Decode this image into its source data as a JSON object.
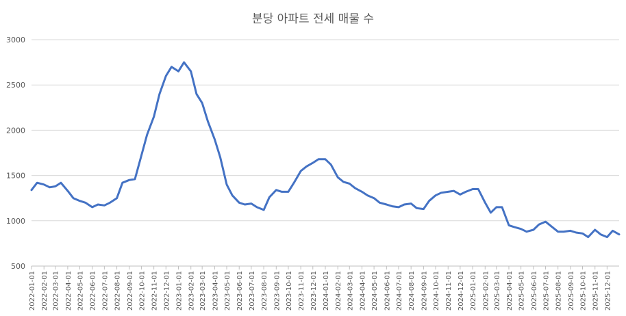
{
  "chart_data": {
    "type": "line",
    "title": "분당 아파트 전세 매물 수",
    "xlabel": "",
    "ylabel": "",
    "ylim": [
      500,
      3000
    ],
    "yticks": [
      500,
      1000,
      1500,
      2000,
      2500,
      3000
    ],
    "xlim": [
      "2022-01-01",
      "2025-12-31"
    ],
    "grid": "horizontal",
    "legend": "none",
    "line_color": "#4472c4",
    "x_tick_labels": [
      "2022-01-01",
      "2022-02-01",
      "2022-03-01",
      "2022-04-01",
      "2022-05-01",
      "2022-06-01",
      "2022-07-01",
      "2022-08-01",
      "2022-09-01",
      "2022-10-01",
      "2022-11-01",
      "2022-12-01",
      "2023-01-01",
      "2023-02-01",
      "2023-03-01",
      "2023-04-01",
      "2023-05-01",
      "2023-06-01",
      "2023-07-01",
      "2023-08-01",
      "2023-09-01",
      "2023-10-01",
      "2023-11-01",
      "2023-12-01",
      "2024-01-01",
      "2024-02-01",
      "2024-03-01",
      "2024-04-01",
      "2024-05-01",
      "2024-06-01",
      "2024-07-01",
      "2024-08-01",
      "2024-09-01",
      "2024-10-01",
      "2024-11-01",
      "2024-12-01",
      "2025-01-01",
      "2025-02-01",
      "2025-03-01",
      "2025-04-01",
      "2025-05-01",
      "2025-06-01",
      "2025-07-01",
      "2025-08-01",
      "2025-09-01",
      "2025-10-01",
      "2025-11-01",
      "2025-12-01"
    ],
    "series": [
      {
        "x": [
          "2022-01-01",
          "2022-01-15",
          "2022-02-01",
          "2022-02-15",
          "2022-03-01",
          "2022-03-15",
          "2022-04-01",
          "2022-04-15",
          "2022-05-01",
          "2022-05-15",
          "2022-06-01",
          "2022-06-15",
          "2022-07-01",
          "2022-07-15",
          "2022-08-01",
          "2022-08-15",
          "2022-09-01",
          "2022-09-15",
          "2022-10-01",
          "2022-10-15",
          "2022-11-01",
          "2022-11-15",
          "2022-12-01",
          "2022-12-15",
          "2023-01-01",
          "2023-01-15",
          "2023-02-01",
          "2023-02-15",
          "2023-03-01",
          "2023-03-15",
          "2023-04-01",
          "2023-04-15",
          "2023-05-01",
          "2023-05-15",
          "2023-06-01",
          "2023-06-15",
          "2023-07-01",
          "2023-07-15",
          "2023-08-01",
          "2023-08-15",
          "2023-09-01",
          "2023-09-15",
          "2023-10-01",
          "2023-10-15",
          "2023-11-01",
          "2023-11-15",
          "2023-12-01",
          "2023-12-15",
          "2024-01-01",
          "2024-01-15",
          "2024-02-01",
          "2024-02-15",
          "2024-03-01",
          "2024-03-15",
          "2024-04-01",
          "2024-04-15",
          "2024-05-01",
          "2024-05-15",
          "2024-06-01",
          "2024-06-15",
          "2024-07-01",
          "2024-07-15",
          "2024-08-01",
          "2024-08-15",
          "2024-09-01",
          "2024-09-15",
          "2024-10-01",
          "2024-10-15",
          "2024-11-01",
          "2024-11-15",
          "2024-12-01",
          "2024-12-15",
          "2025-01-01",
          "2025-01-15",
          "2025-02-01",
          "2025-02-15",
          "2025-03-01",
          "2025-03-15",
          "2025-04-01",
          "2025-04-15",
          "2025-05-01",
          "2025-05-15",
          "2025-06-01",
          "2025-06-15",
          "2025-07-01",
          "2025-07-15",
          "2025-08-01",
          "2025-08-15",
          "2025-09-01",
          "2025-09-15",
          "2025-10-01",
          "2025-10-15",
          "2025-11-01",
          "2025-11-15",
          "2025-12-01",
          "2025-12-15",
          "2025-12-31"
        ],
        "values": [
          1340,
          1420,
          1400,
          1370,
          1380,
          1420,
          1330,
          1250,
          1220,
          1200,
          1150,
          1180,
          1170,
          1200,
          1250,
          1420,
          1450,
          1460,
          1720,
          1950,
          2150,
          2400,
          2600,
          2700,
          2650,
          2750,
          2650,
          2400,
          2300,
          2100,
          1900,
          1700,
          1400,
          1280,
          1200,
          1180,
          1190,
          1150,
          1120,
          1260,
          1340,
          1320,
          1320,
          1420,
          1550,
          1600,
          1640,
          1680,
          1680,
          1620,
          1480,
          1430,
          1410,
          1360,
          1320,
          1280,
          1250,
          1200,
          1180,
          1160,
          1150,
          1180,
          1190,
          1140,
          1130,
          1220,
          1280,
          1310,
          1320,
          1330,
          1290,
          1320,
          1350,
          1350,
          1200,
          1090,
          1150,
          1150,
          950,
          930,
          910,
          880,
          900,
          960,
          990,
          940,
          880,
          880,
          890,
          870,
          860,
          820,
          900,
          850,
          820,
          890,
          850
        ]
      }
    ]
  }
}
